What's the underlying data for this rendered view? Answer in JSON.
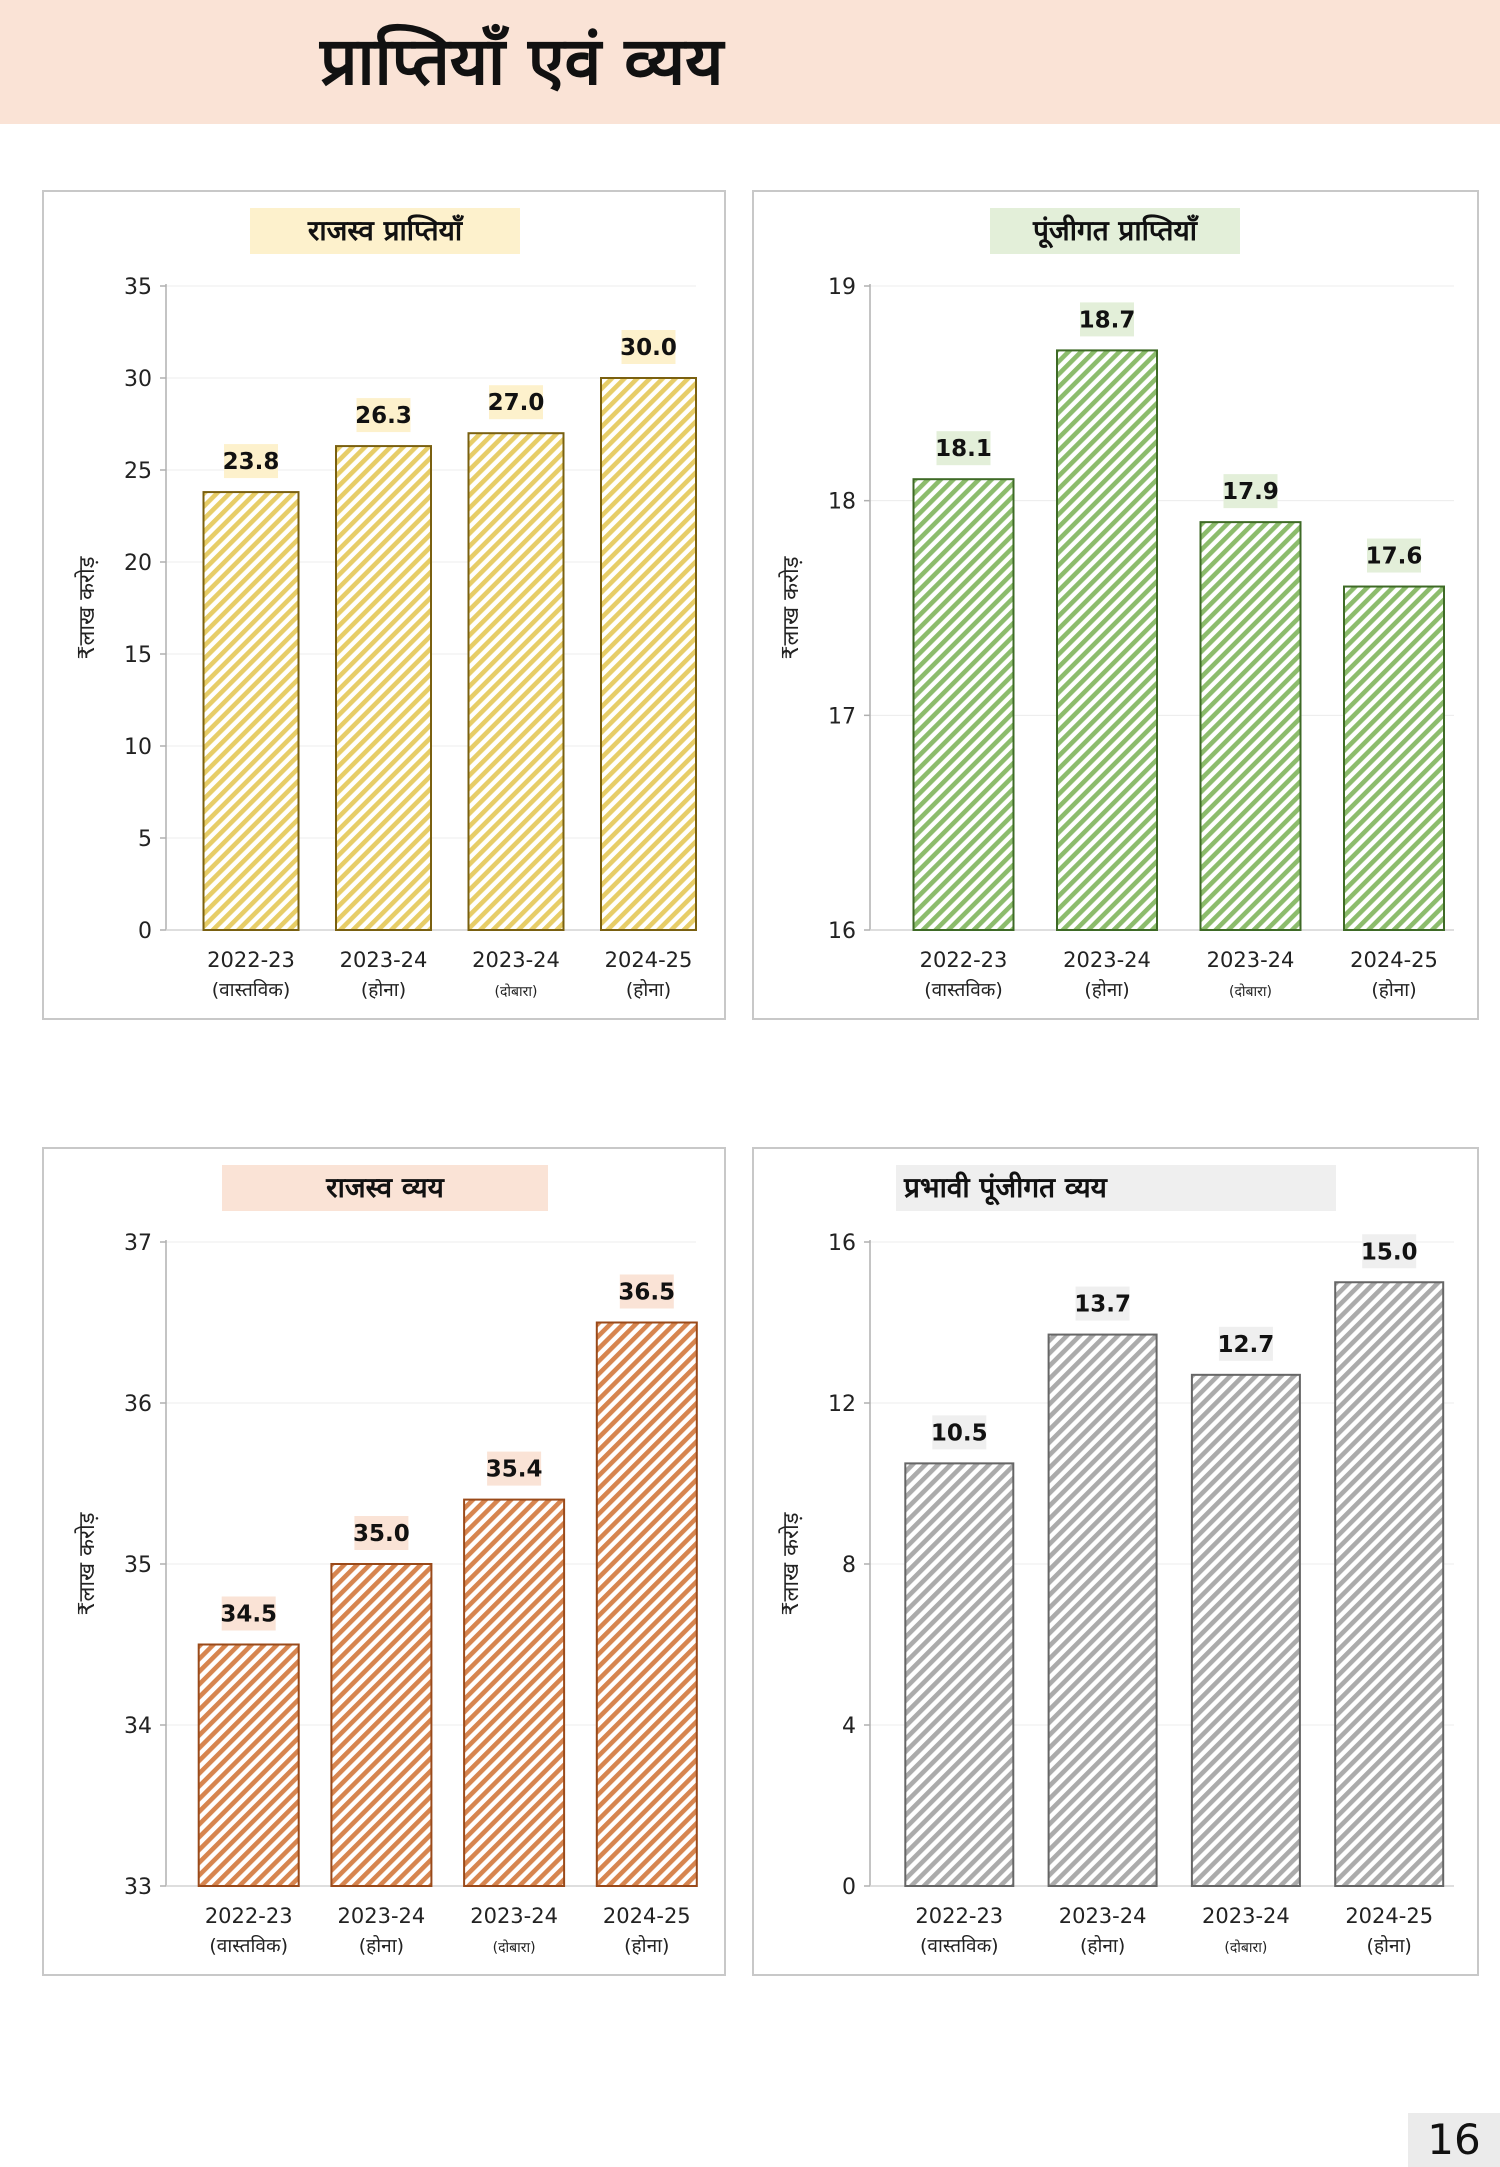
{
  "page": {
    "title": "प्राप्तियाँ एवं व्यय",
    "page_number": "16"
  },
  "chart_data": [
    {
      "type": "bar",
      "title": "राजस्व प्राप्तियाँ",
      "ylabel": "₹लाख करोड़",
      "categories": [
        {
          "year": "2022-23",
          "note": "(वास्तविक)"
        },
        {
          "year": "2023-24",
          "note": "(होना)"
        },
        {
          "year": "2023-24",
          "note": "(दोबारा)"
        },
        {
          "year": "2024-25",
          "note": "(होना)"
        }
      ],
      "values": [
        23.8,
        26.3,
        27.0,
        30.0
      ],
      "value_labels": [
        "23.8",
        "26.3",
        "27.0",
        "30.0"
      ],
      "ylim": [
        0,
        35
      ],
      "yticks": [
        0,
        5,
        10,
        15,
        20,
        25,
        30,
        35
      ],
      "colors": {
        "bar": "#e7cd67",
        "stroke": "#7a6010",
        "label_bg": "#fdf1cc",
        "title_bg": "#fdf1cc"
      }
    },
    {
      "type": "bar",
      "title": "पूंजीगत प्राप्तियाँ",
      "ylabel": "₹लाख करोड़",
      "categories": [
        {
          "year": "2022-23",
          "note": "(वास्तविक)"
        },
        {
          "year": "2023-24",
          "note": "(होना)"
        },
        {
          "year": "2023-24",
          "note": "(दोबारा)"
        },
        {
          "year": "2024-25",
          "note": "(होना)"
        }
      ],
      "values": [
        18.1,
        18.7,
        17.9,
        17.6
      ],
      "value_labels": [
        "18.1",
        "18.7",
        "17.9",
        "17.6"
      ],
      "ylim": [
        16,
        19
      ],
      "yticks": [
        16,
        17,
        18,
        19
      ],
      "colors": {
        "bar": "#8cbc6c",
        "stroke": "#3e6a26",
        "label_bg": "#e3efd9",
        "title_bg": "#e3efd9"
      }
    },
    {
      "type": "bar",
      "title": "राजस्व व्यय",
      "ylabel": "₹लाख करोड़",
      "categories": [
        {
          "year": "2022-23",
          "note": "(वास्तविक)"
        },
        {
          "year": "2023-24",
          "note": "(होना)"
        },
        {
          "year": "2023-24",
          "note": "(दोबारा)"
        },
        {
          "year": "2024-25",
          "note": "(होना)"
        }
      ],
      "values": [
        34.5,
        35.0,
        35.4,
        36.5
      ],
      "value_labels": [
        "34.5",
        "35.0",
        "35.4",
        "36.5"
      ],
      "ylim": [
        33,
        37
      ],
      "yticks": [
        33,
        34,
        35,
        36,
        37
      ],
      "colors": {
        "bar": "#d7854f",
        "stroke": "#9a4a1a",
        "label_bg": "#fae3d6",
        "title_bg": "#fae3d6"
      }
    },
    {
      "type": "bar",
      "title": "प्रभावी पूंजीगत व्यय",
      "ylabel": "₹लाख करोड़",
      "categories": [
        {
          "year": "2022-23",
          "note": "(वास्तविक)"
        },
        {
          "year": "2023-24",
          "note": "(होना)"
        },
        {
          "year": "2023-24",
          "note": "(दोबारा)"
        },
        {
          "year": "2024-25",
          "note": "(होना)"
        }
      ],
      "values": [
        10.5,
        13.7,
        12.7,
        15.0
      ],
      "value_labels": [
        "10.5",
        "13.7",
        "12.7",
        "15.0"
      ],
      "ylim": [
        0,
        16
      ],
      "yticks": [
        0,
        4,
        8,
        12,
        16
      ],
      "colors": {
        "bar": "#ababab",
        "stroke": "#666666",
        "label_bg": "#efefef",
        "title_bg": "#efefef"
      }
    }
  ]
}
